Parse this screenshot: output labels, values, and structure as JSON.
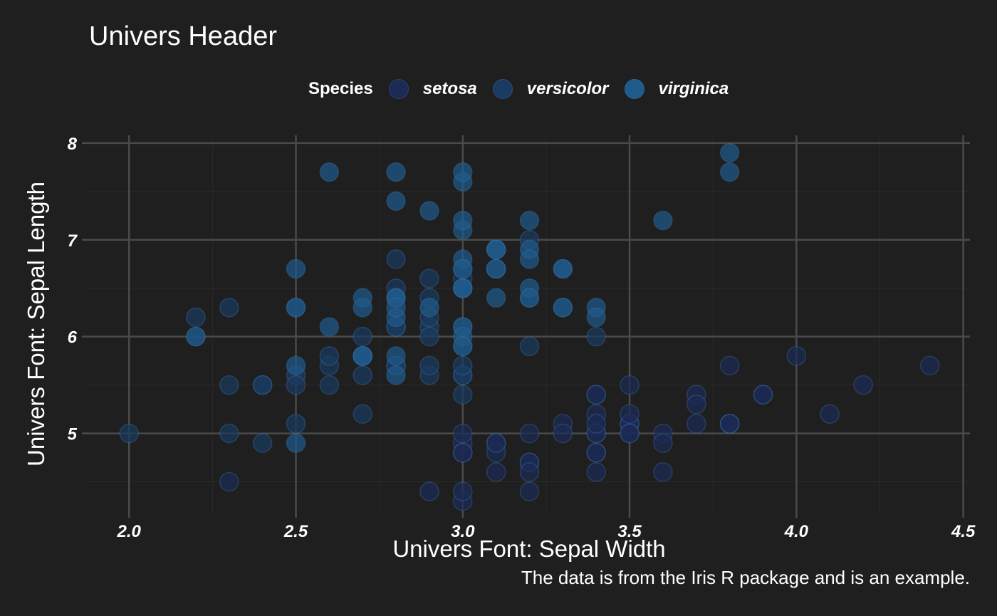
{
  "chart_data": {
    "type": "scatter",
    "title": "Univers Header",
    "xlabel": "Univers Font: Sepal Width",
    "ylabel": "Univers Font: Sepal Length",
    "caption": "The data is from the Iris R package and is an example.",
    "legend_title": "Species",
    "legend_position": "top",
    "grid": true,
    "xlim": [
      1.88,
      4.52
    ],
    "ylim": [
      4.18,
      8.08
    ],
    "x_ticks": [
      2.0,
      2.5,
      3.0,
      3.5,
      4.0,
      4.5
    ],
    "x_tick_labels": [
      "2.0",
      "2.5",
      "3.0",
      "3.5",
      "4.0",
      "4.5"
    ],
    "y_ticks": [
      5,
      6,
      7,
      8
    ],
    "y_tick_labels": [
      "5",
      "6",
      "7",
      "8"
    ],
    "series": [
      {
        "name": "setosa",
        "color": "#1c2a55",
        "points": [
          [
            3.5,
            5.1
          ],
          [
            3.0,
            4.9
          ],
          [
            3.2,
            4.7
          ],
          [
            3.1,
            4.6
          ],
          [
            3.6,
            5.0
          ],
          [
            3.9,
            5.4
          ],
          [
            3.4,
            4.6
          ],
          [
            3.4,
            5.0
          ],
          [
            2.9,
            4.4
          ],
          [
            3.1,
            4.9
          ],
          [
            3.7,
            5.4
          ],
          [
            3.4,
            4.8
          ],
          [
            3.0,
            4.8
          ],
          [
            3.0,
            4.3
          ],
          [
            4.0,
            5.8
          ],
          [
            4.4,
            5.7
          ],
          [
            3.9,
            5.4
          ],
          [
            3.5,
            5.1
          ],
          [
            3.8,
            5.7
          ],
          [
            3.8,
            5.1
          ],
          [
            3.4,
            5.4
          ],
          [
            3.7,
            5.1
          ],
          [
            3.6,
            4.6
          ],
          [
            3.3,
            5.1
          ],
          [
            3.4,
            4.8
          ],
          [
            3.0,
            5.0
          ],
          [
            3.4,
            5.0
          ],
          [
            3.5,
            5.2
          ],
          [
            3.4,
            5.2
          ],
          [
            3.2,
            4.7
          ],
          [
            3.1,
            4.8
          ],
          [
            3.4,
            5.4
          ],
          [
            4.1,
            5.2
          ],
          [
            4.2,
            5.5
          ],
          [
            3.1,
            4.9
          ],
          [
            3.2,
            5.0
          ],
          [
            3.5,
            5.5
          ],
          [
            3.6,
            4.9
          ],
          [
            3.0,
            4.4
          ],
          [
            3.4,
            5.1
          ],
          [
            3.5,
            5.0
          ],
          [
            2.3,
            4.5
          ],
          [
            3.2,
            4.4
          ],
          [
            3.5,
            5.0
          ],
          [
            3.8,
            5.1
          ],
          [
            3.0,
            4.8
          ],
          [
            3.8,
            5.1
          ],
          [
            3.2,
            4.6
          ],
          [
            3.7,
            5.3
          ],
          [
            3.3,
            5.0
          ]
        ]
      },
      {
        "name": "versicolor",
        "color": "#1b3a60",
        "points": [
          [
            3.2,
            7.0
          ],
          [
            3.2,
            6.4
          ],
          [
            3.1,
            6.9
          ],
          [
            2.3,
            5.5
          ],
          [
            2.8,
            6.5
          ],
          [
            2.8,
            5.7
          ],
          [
            3.3,
            6.3
          ],
          [
            2.4,
            4.9
          ],
          [
            2.9,
            6.6
          ],
          [
            2.7,
            5.2
          ],
          [
            2.0,
            5.0
          ],
          [
            3.0,
            5.9
          ],
          [
            2.2,
            6.0
          ],
          [
            2.9,
            6.1
          ],
          [
            2.9,
            5.6
          ],
          [
            3.1,
            6.7
          ],
          [
            3.0,
            5.6
          ],
          [
            2.7,
            5.8
          ],
          [
            2.2,
            6.2
          ],
          [
            2.5,
            5.6
          ],
          [
            3.2,
            5.9
          ],
          [
            2.8,
            6.1
          ],
          [
            2.5,
            6.3
          ],
          [
            2.8,
            6.1
          ],
          [
            2.9,
            6.4
          ],
          [
            3.0,
            6.6
          ],
          [
            2.8,
            6.8
          ],
          [
            3.0,
            6.7
          ],
          [
            2.9,
            6.0
          ],
          [
            2.6,
            5.7
          ],
          [
            2.4,
            5.5
          ],
          [
            2.4,
            5.5
          ],
          [
            2.7,
            5.8
          ],
          [
            2.7,
            6.0
          ],
          [
            3.0,
            5.4
          ],
          [
            3.4,
            6.0
          ],
          [
            3.1,
            6.7
          ],
          [
            2.3,
            6.3
          ],
          [
            3.0,
            5.6
          ],
          [
            2.5,
            5.5
          ],
          [
            2.6,
            5.5
          ],
          [
            3.0,
            6.1
          ],
          [
            2.6,
            5.8
          ],
          [
            2.3,
            5.0
          ],
          [
            2.7,
            5.6
          ],
          [
            3.0,
            5.7
          ],
          [
            2.9,
            5.7
          ],
          [
            2.9,
            6.2
          ],
          [
            2.5,
            5.1
          ],
          [
            2.8,
            5.7
          ]
        ]
      },
      {
        "name": "virginica",
        "color": "#1e5a8a",
        "points": [
          [
            3.3,
            6.3
          ],
          [
            2.7,
            5.8
          ],
          [
            3.0,
            7.1
          ],
          [
            2.9,
            6.3
          ],
          [
            3.0,
            6.5
          ],
          [
            3.0,
            7.6
          ],
          [
            2.5,
            4.9
          ],
          [
            2.9,
            7.3
          ],
          [
            2.5,
            6.7
          ],
          [
            3.6,
            7.2
          ],
          [
            3.2,
            6.5
          ],
          [
            2.7,
            6.4
          ],
          [
            3.0,
            6.8
          ],
          [
            2.5,
            5.7
          ],
          [
            2.8,
            5.8
          ],
          [
            3.2,
            6.4
          ],
          [
            3.0,
            6.5
          ],
          [
            3.8,
            7.7
          ],
          [
            2.6,
            7.7
          ],
          [
            2.2,
            6.0
          ],
          [
            3.2,
            6.9
          ],
          [
            2.8,
            5.6
          ],
          [
            2.8,
            7.7
          ],
          [
            2.7,
            6.3
          ],
          [
            3.3,
            6.7
          ],
          [
            3.2,
            7.2
          ],
          [
            2.8,
            6.2
          ],
          [
            3.0,
            6.1
          ],
          [
            2.8,
            6.4
          ],
          [
            3.0,
            7.2
          ],
          [
            2.8,
            7.4
          ],
          [
            3.8,
            7.9
          ],
          [
            2.8,
            6.4
          ],
          [
            2.8,
            6.3
          ],
          [
            2.6,
            6.1
          ],
          [
            3.0,
            7.7
          ],
          [
            3.4,
            6.3
          ],
          [
            3.1,
            6.4
          ],
          [
            3.0,
            6.0
          ],
          [
            3.1,
            6.9
          ],
          [
            3.1,
            6.7
          ],
          [
            3.1,
            6.9
          ],
          [
            2.7,
            5.8
          ],
          [
            3.2,
            6.8
          ],
          [
            3.3,
            6.7
          ],
          [
            3.0,
            6.7
          ],
          [
            2.5,
            6.3
          ],
          [
            3.0,
            6.5
          ],
          [
            3.4,
            6.2
          ],
          [
            3.0,
            5.9
          ]
        ]
      }
    ]
  }
}
